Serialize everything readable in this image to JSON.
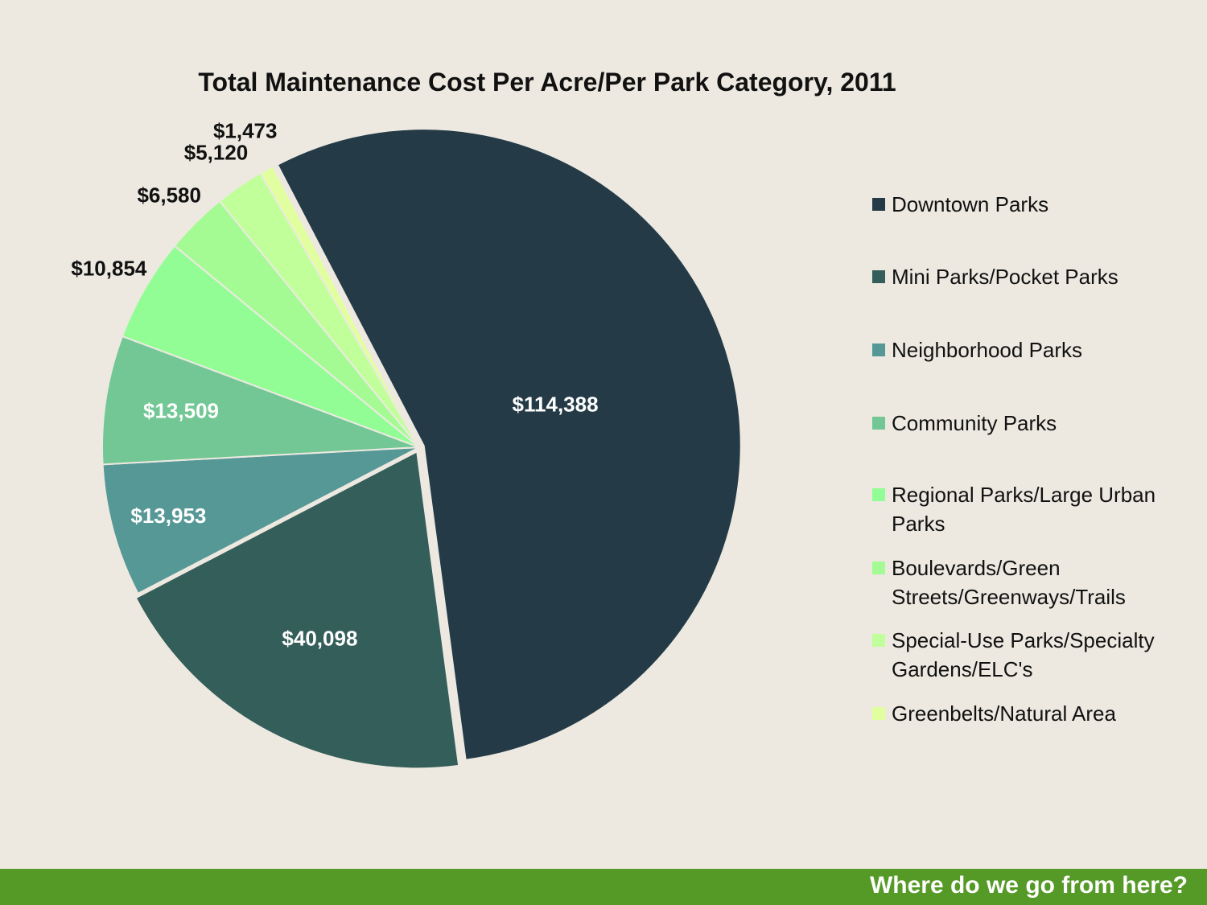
{
  "footer": {
    "tagline": "Where do we go from here?"
  },
  "chart_data": {
    "type": "pie",
    "title": "Total Maintenance Cost Per Acre/Per Park Category, 2011",
    "legend_position": "right",
    "slices": [
      {
        "label": "Downtown Parks",
        "value": 114388,
        "display": "$114,388",
        "color": "#243b47",
        "label_color": "#ffffff"
      },
      {
        "label": "Mini Parks/Pocket Parks",
        "value": 40098,
        "display": "$40,098",
        "color": "#345e59",
        "label_color": "#ffffff"
      },
      {
        "label": "Neighborhood Parks",
        "value": 13953,
        "display": "$13,953",
        "color": "#559896",
        "label_color": "#ffffff"
      },
      {
        "label": "Community Parks",
        "value": 13509,
        "display": "$13,509",
        "color": "#72c795",
        "label_color": "#ffffff"
      },
      {
        "label": "Regional Parks/Large Urban Parks",
        "value": 10854,
        "display": "$10,854",
        "color": "#93fd95",
        "label_color": "#111111"
      },
      {
        "label": "Boulevards/Green Streets/Greenways/Trails",
        "value": 6580,
        "display": "$6,580",
        "color": "#a5fb93",
        "label_color": "#111111"
      },
      {
        "label": "Special-Use Parks/Specialty Gardens/ELC's",
        "value": 5120,
        "display": "$5,120",
        "color": "#c0ff99",
        "label_color": "#111111"
      },
      {
        "label": "Greenbelts/Natural Area",
        "value": 1473,
        "display": "$1,473",
        "color": "#e1ff9f",
        "label_color": "#111111"
      }
    ]
  }
}
